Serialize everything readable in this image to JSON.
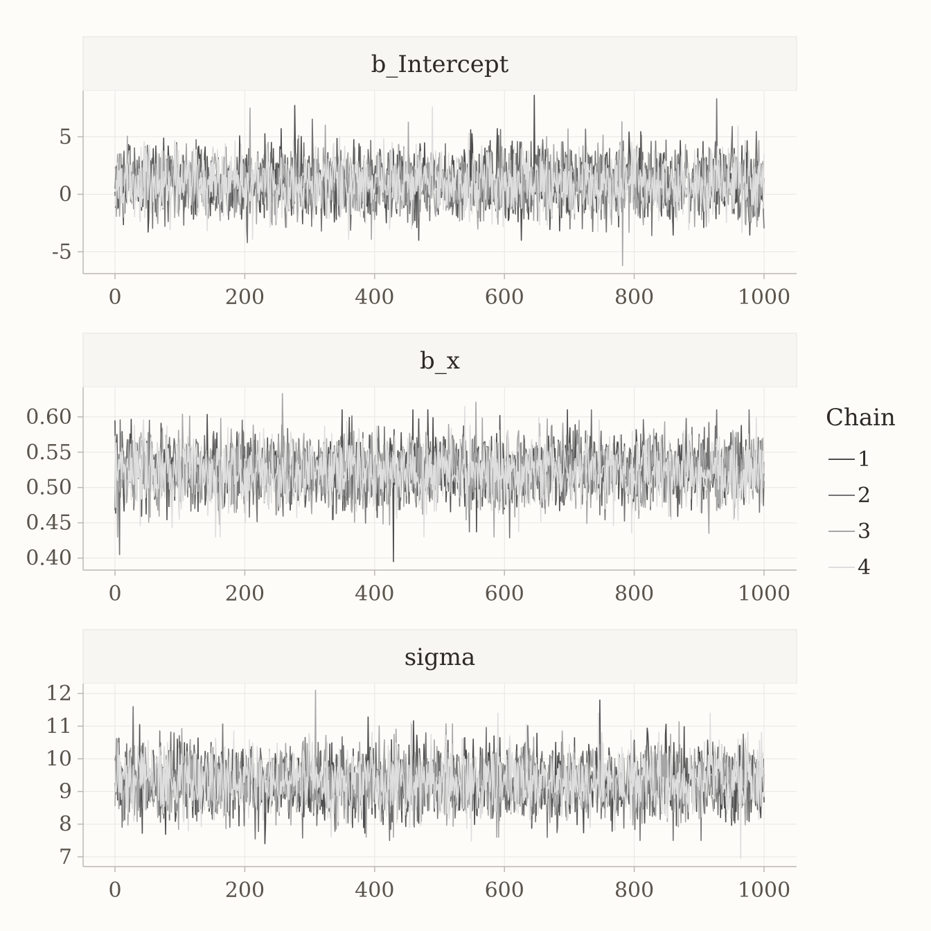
{
  "chart_data": {
    "type": "line",
    "legend": {
      "title": "Chain",
      "position": "right",
      "entries": [
        {
          "name": "1",
          "color": "#4d4d4d"
        },
        {
          "name": "2",
          "color": "#737373"
        },
        {
          "name": "3",
          "color": "#a6a6a6"
        },
        {
          "name": "4",
          "color": "#dedede"
        }
      ]
    },
    "x": {
      "range": [
        0,
        1000
      ],
      "ticks": [
        0,
        200,
        400,
        600,
        800,
        1000
      ],
      "tick_labels": [
        "0",
        "200",
        "400",
        "600",
        "800",
        "1000"
      ]
    },
    "grid": true,
    "panels": [
      {
        "title": "b_Intercept",
        "ylim": [
          -6.9,
          9.0
        ],
        "yticks": [
          -5,
          0,
          5
        ],
        "ytick_labels": [
          "-5",
          "0",
          "5"
        ],
        "chains": [
          {
            "name": "1",
            "mean": 1.0,
            "sd": 1.9,
            "max": 8.6,
            "min": -4.0
          },
          {
            "name": "2",
            "mean": 1.0,
            "sd": 1.9,
            "max": 8.3,
            "min": -4.2
          },
          {
            "name": "3",
            "mean": 1.0,
            "sd": 1.9,
            "max": 7.5,
            "min": -6.2
          },
          {
            "name": "4",
            "mean": 1.0,
            "sd": 1.9,
            "max": 7.6,
            "min": -3.9
          }
        ]
      },
      {
        "title": "b_x",
        "ylim": [
          0.383,
          0.642
        ],
        "yticks": [
          0.4,
          0.45,
          0.5,
          0.55,
          0.6
        ],
        "ytick_labels": [
          "0.40",
          "0.45",
          "0.50",
          "0.55",
          "0.60"
        ],
        "chains": [
          {
            "name": "1",
            "mean": 0.523,
            "sd": 0.033,
            "max": 0.61,
            "min": 0.395
          },
          {
            "name": "2",
            "mean": 0.523,
            "sd": 0.033,
            "max": 0.61,
            "min": 0.405
          },
          {
            "name": "3",
            "mean": 0.523,
            "sd": 0.033,
            "max": 0.633,
            "min": 0.43
          },
          {
            "name": "4",
            "mean": 0.523,
            "sd": 0.033,
            "max": 0.615,
            "min": 0.43
          }
        ]
      },
      {
        "title": "sigma",
        "ylim": [
          6.7,
          12.3
        ],
        "yticks": [
          7,
          8,
          9,
          10,
          11,
          12
        ],
        "ytick_labels": [
          "7",
          "8",
          "9",
          "10",
          "11",
          "12"
        ],
        "chains": [
          {
            "name": "1",
            "mean": 9.3,
            "sd": 0.72,
            "max": 11.8,
            "min": 7.4
          },
          {
            "name": "2",
            "mean": 9.3,
            "sd": 0.72,
            "max": 11.6,
            "min": 7.5
          },
          {
            "name": "3",
            "mean": 9.3,
            "sd": 0.72,
            "max": 12.1,
            "min": 7.6
          },
          {
            "name": "4",
            "mean": 9.3,
            "sd": 0.72,
            "max": 11.4,
            "min": 6.95
          }
        ]
      }
    ]
  }
}
